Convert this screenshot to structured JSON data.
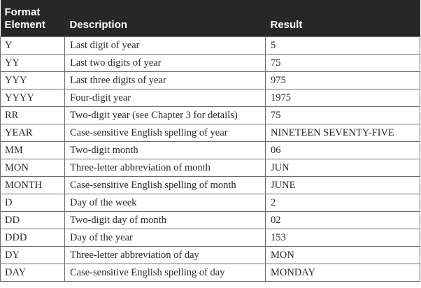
{
  "header": {
    "col1_line1": "Format",
    "col1_line2": "Element",
    "col2": "Description",
    "col3": "Result"
  },
  "rows": [
    {
      "element": "Y",
      "description": "Last digit of year",
      "result": "5"
    },
    {
      "element": "YY",
      "description": "Last two digits of year",
      "result": "75"
    },
    {
      "element": "YYY",
      "description": "Last three digits of year",
      "result": "975"
    },
    {
      "element": "YYYY",
      "description": "Four-digit year",
      "result": "1975"
    },
    {
      "element": "RR",
      "description": "Two-digit year (see Chapter 3 for details)",
      "result": "75"
    },
    {
      "element": "YEAR",
      "description": "Case-sensitive English spelling of year",
      "result": "NINETEEN SEVENTY-FIVE"
    },
    {
      "element": "MM",
      "description": "Two-digit month",
      "result": "06"
    },
    {
      "element": "MON",
      "description": "Three-letter abbreviation of month",
      "result": "JUN"
    },
    {
      "element": "MONTH",
      "description": "Case-sensitive English spelling of month",
      "result": "JUNE"
    },
    {
      "element": "D",
      "description": "Day of the week",
      "result": "2"
    },
    {
      "element": "DD",
      "description": "Two-digit day of month",
      "result": "02"
    },
    {
      "element": "DDD",
      "description": "Day of the year",
      "result": "153"
    },
    {
      "element": "DY",
      "description": "Three-letter abbreviation of day",
      "result": "MON"
    },
    {
      "element": "DAY",
      "description": "Case-sensitive English spelling of day",
      "result": "MONDAY"
    }
  ]
}
